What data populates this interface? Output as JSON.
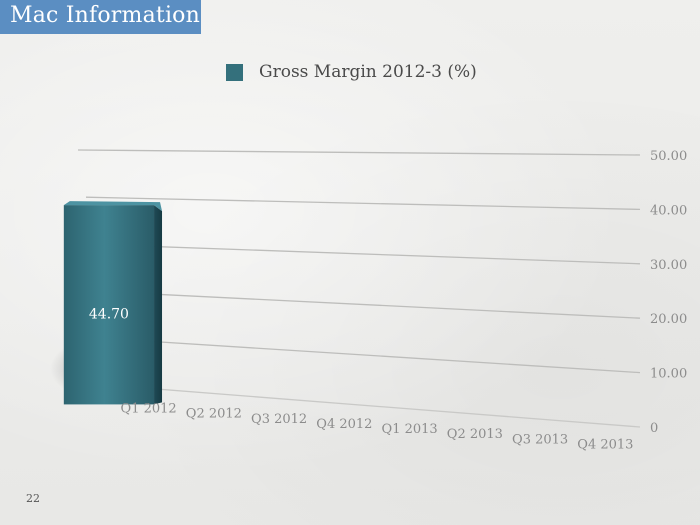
{
  "slide": {
    "title": "Mac Information",
    "page_number": "22"
  },
  "colors": {
    "title_bar": "#5b8ec2",
    "bar": "#34707c"
  },
  "chart_data": {
    "type": "bar",
    "categories": [
      "Q1 2012",
      "Q2 2012",
      "Q3 2012",
      "Q4 2012",
      "Q1 2013",
      "Q2 2013",
      "Q3 2013",
      "Q4 2013"
    ],
    "series": [
      {
        "name": "Gross Margin 2012-3 (%)",
        "values": [
          44.7,
          null,
          null,
          null,
          null,
          null,
          null,
          null
        ]
      }
    ],
    "data_labels": [
      "44.70",
      "",
      "",
      "",
      "",
      "",
      "",
      ""
    ],
    "y_ticks": [
      "0",
      "10.00",
      "20.00",
      "30.00",
      "40.00",
      "50.00"
    ],
    "ylim": [
      0,
      50
    ],
    "grid": true,
    "legend_position": "top",
    "title": "",
    "xlabel": "",
    "ylabel": ""
  }
}
